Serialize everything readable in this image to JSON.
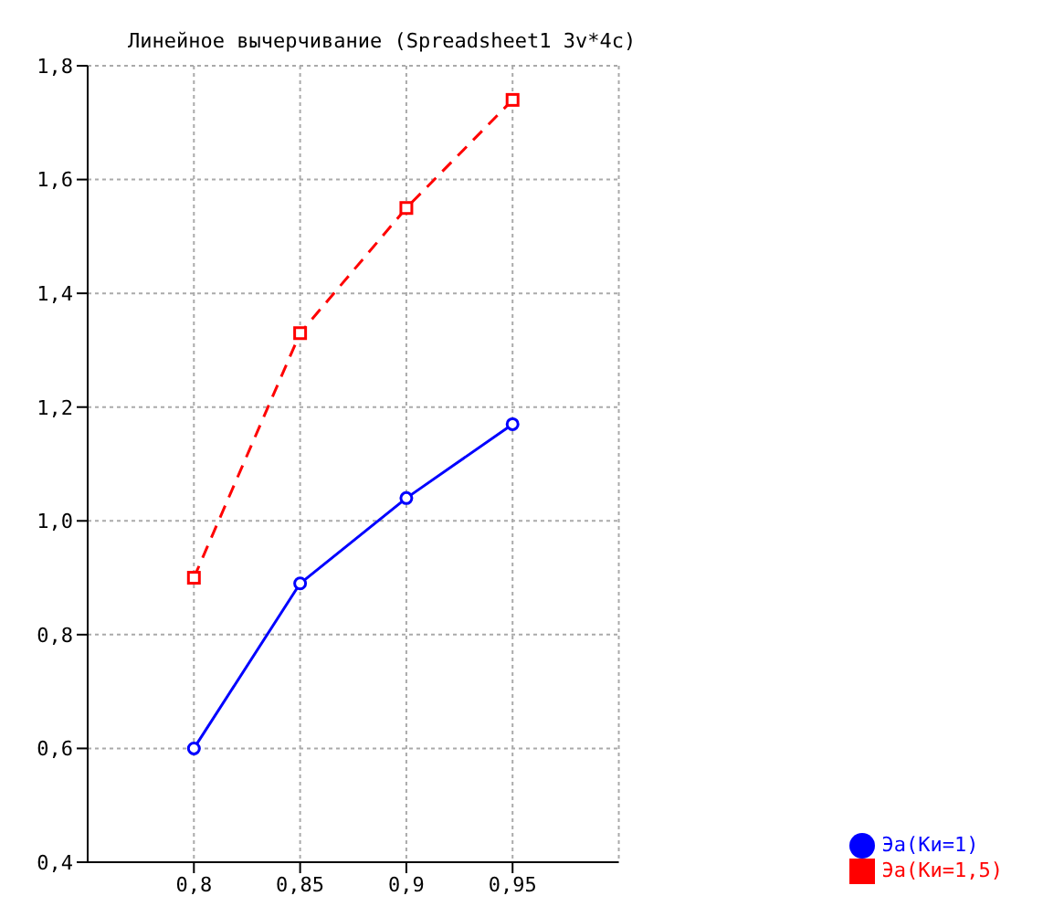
{
  "chart_data": {
    "type": "line",
    "title": "Линейное вычерчивание (Spreadsheet1 3v*4c)",
    "x": [
      0.8,
      0.85,
      0.9,
      0.95
    ],
    "series": [
      {
        "name": "Эа(Ки=1)",
        "color": "#0000ff",
        "values": [
          0.6,
          0.89,
          1.04,
          1.17
        ],
        "marker": "circle",
        "line_style": "solid"
      },
      {
        "name": "Эа(Ки=1,5)",
        "color": "#ff0000",
        "values": [
          0.9,
          1.33,
          1.55,
          1.74
        ],
        "marker": "square",
        "line_style": "dashed"
      }
    ],
    "xlim": [
      0.75,
      1.0
    ],
    "xticks": [
      {
        "value": 0.8,
        "label": "0,8"
      },
      {
        "value": 0.85,
        "label": "0,85"
      },
      {
        "value": 0.9,
        "label": "0,9"
      },
      {
        "value": 0.95,
        "label": "0,95"
      }
    ],
    "ylim": [
      0.4,
      1.8
    ],
    "yticks": [
      {
        "value": 0.4,
        "label": "0,4"
      },
      {
        "value": 0.6,
        "label": "0,6"
      },
      {
        "value": 0.8,
        "label": "0,8"
      },
      {
        "value": 1.0,
        "label": "1,0"
      },
      {
        "value": 1.2,
        "label": "1,2"
      },
      {
        "value": 1.4,
        "label": "1,4"
      },
      {
        "value": 1.6,
        "label": "1,6"
      },
      {
        "value": 1.8,
        "label": "1,8"
      }
    ],
    "grid": true,
    "legend": "bottom right"
  }
}
